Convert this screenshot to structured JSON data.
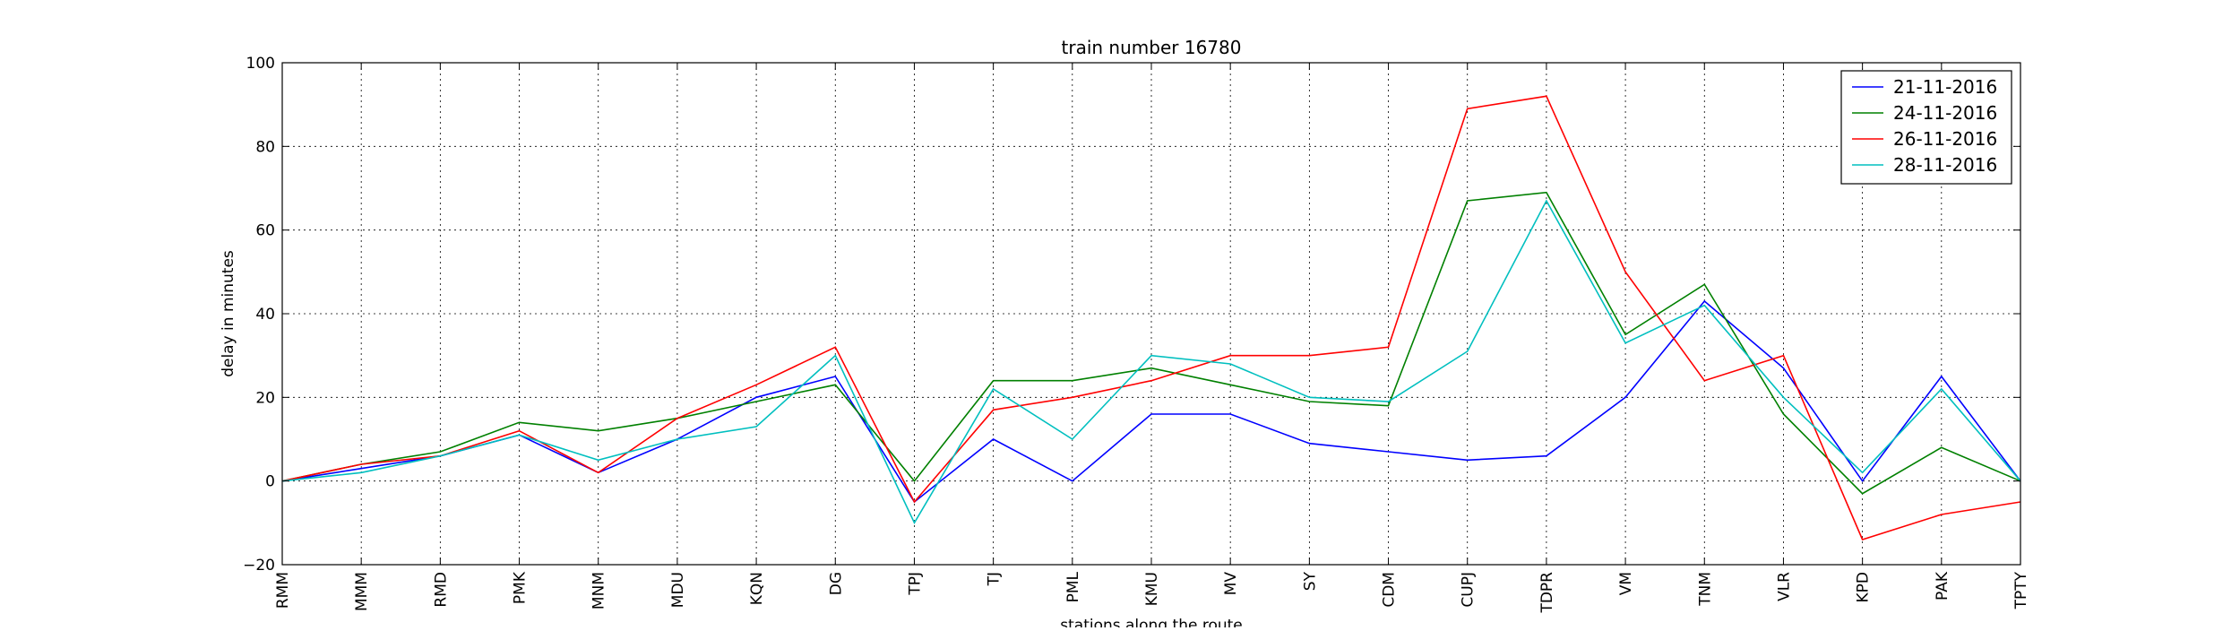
{
  "chart_data": {
    "type": "line",
    "title": "train number 16780",
    "xlabel": "stations along the route",
    "ylabel": "delay in minutes",
    "categories": [
      "RMM",
      "MMM",
      "RMD",
      "PMK",
      "MNM",
      "MDU",
      "KQN",
      "DG",
      "TPJ",
      "TJ",
      "PML",
      "KMU",
      "MV",
      "SY",
      "CDM",
      "CUPJ",
      "TDPR",
      "VM",
      "TNM",
      "VLR",
      "KPD",
      "PAK",
      "TPTY"
    ],
    "ylim": [
      -20,
      100
    ],
    "yticks": [
      -20,
      0,
      20,
      40,
      60,
      80,
      100
    ],
    "grid": true,
    "legend_position": "top-right",
    "series": [
      {
        "name": "21-11-2016",
        "color": "#0000ff",
        "values": [
          0,
          3,
          6,
          11,
          2,
          10,
          20,
          25,
          -5,
          10,
          0,
          16,
          16,
          9,
          7,
          5,
          6,
          20,
          43,
          27,
          0,
          25,
          0
        ]
      },
      {
        "name": "24-11-2016",
        "color": "#008000",
        "values": [
          0,
          4,
          7,
          14,
          12,
          15,
          19,
          23,
          0,
          24,
          24,
          27,
          23,
          19,
          18,
          67,
          69,
          35,
          47,
          16,
          -3,
          8,
          0
        ]
      },
      {
        "name": "26-11-2016",
        "color": "#ff0000",
        "values": [
          0,
          4,
          6,
          12,
          2,
          15,
          23,
          32,
          -5,
          17,
          20,
          24,
          30,
          30,
          32,
          89,
          92,
          50,
          24,
          30,
          -14,
          -8,
          -5
        ]
      },
      {
        "name": "28-11-2016",
        "color": "#00bfbf",
        "values": [
          0,
          2,
          6,
          11,
          5,
          10,
          13,
          30,
          -10,
          22,
          10,
          30,
          28,
          20,
          19,
          31,
          67,
          33,
          42,
          20,
          2,
          22,
          0
        ]
      }
    ]
  }
}
